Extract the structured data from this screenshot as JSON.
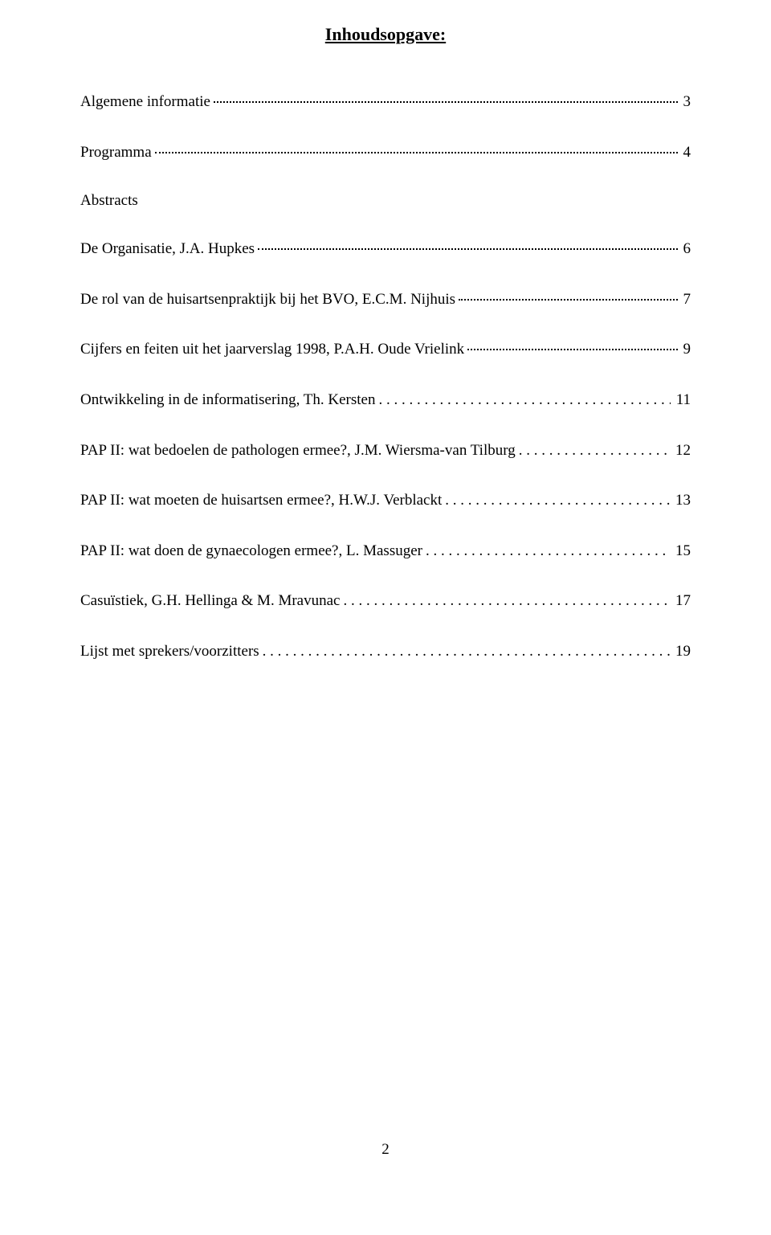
{
  "title": "Inhoudsopgave:",
  "entries": [
    {
      "label": "Algemene informatie",
      "page": "3",
      "dotsSpaced": false
    },
    {
      "label": "Programma",
      "page": "4",
      "dotsSpaced": false
    },
    {
      "label": "Abstracts",
      "page": null,
      "header": true
    },
    {
      "label": "De Organisatie, J.A. Hupkes",
      "page": "6",
      "dotsSpaced": false
    },
    {
      "label": "De rol van de huisartsenpraktijk bij het BVO, E.C.M. Nijhuis",
      "page": "7",
      "dotsSpaced": false
    },
    {
      "label": "Cijfers en feiten uit het jaarverslag 1998, P.A.H. Oude Vrielink",
      "page": "9",
      "dotsSpaced": false
    },
    {
      "label": "Ontwikkeling in de informatisering, Th. Kersten",
      "page": "11",
      "dotsSpaced": true
    },
    {
      "label": "PAP II: wat bedoelen de pathologen ermee?, J.M. Wiersma-van Tilburg",
      "page": "12",
      "dotsSpaced": true
    },
    {
      "label": "PAP II: wat moeten de huisartsen ermee?, H.W.J. Verblackt",
      "page": "13",
      "dotsSpaced": true
    },
    {
      "label": "PAP II: wat doen de gynaecologen ermee?, L. Massuger",
      "page": "15",
      "dotsSpaced": true
    },
    {
      "label": "Casuïstiek, G.H. Hellinga & M. Mravunac",
      "page": "17",
      "dotsSpaced": true
    },
    {
      "label": "Lijst met sprekers/voorzitters",
      "page": "19",
      "dotsSpaced": true,
      "standalone": true
    }
  ],
  "pageNumber": "2",
  "colors": {
    "background": "#ffffff",
    "text": "#000000"
  },
  "fontSizes": {
    "title": 22,
    "entry": 19,
    "pageNumber": 19
  }
}
